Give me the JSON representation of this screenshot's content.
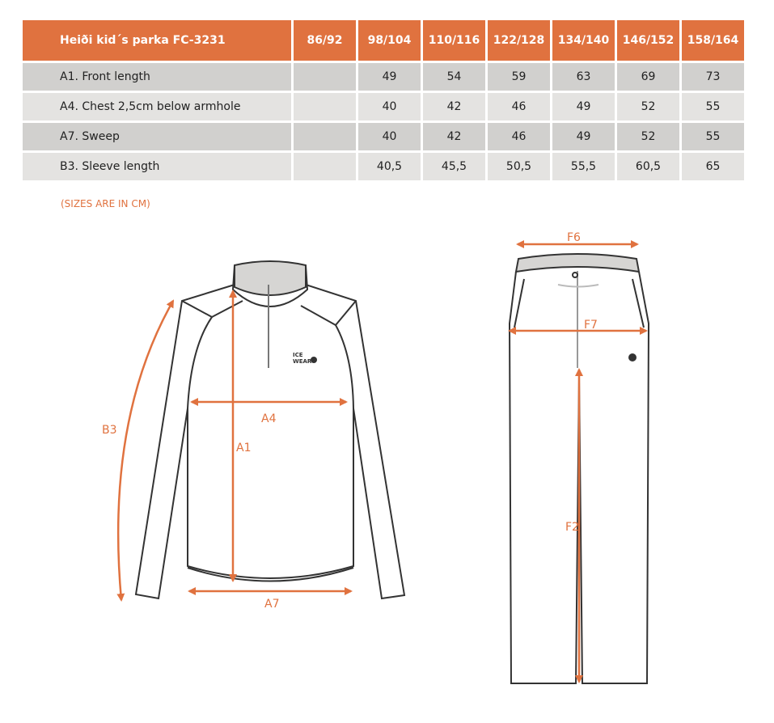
{
  "table": {
    "title": "Heiði kid´s parka FC-3231",
    "sizes": [
      "86/92",
      "98/104",
      "110/116",
      "122/128",
      "134/140",
      "146/152",
      "158/164"
    ],
    "rows": [
      {
        "label": "A1. Front length",
        "values": [
          "",
          "49",
          "54",
          "59",
          "63",
          "69",
          "73"
        ]
      },
      {
        "label": "A4. Chest 2,5cm below armhole",
        "values": [
          "",
          "40",
          "42",
          "46",
          "49",
          "52",
          "55"
        ]
      },
      {
        "label": "A7. Sweep",
        "values": [
          "",
          "40",
          "42",
          "46",
          "49",
          "52",
          "55"
        ]
      },
      {
        "label": "B3. Sleeve length",
        "values": [
          "",
          "40,5",
          "45,5",
          "50,5",
          "55,5",
          "60,5",
          "65"
        ]
      }
    ]
  },
  "note": "(SIZES ARE IN CM)",
  "diagram": {
    "jacket_labels": {
      "b3": "B3",
      "a4": "A4",
      "a1": "A1",
      "a7": "A7"
    },
    "pants_labels": {
      "f6": "F6",
      "f7": "F7",
      "f2": "F2"
    },
    "logo": "ICE WEAR",
    "accent": "#E0723F"
  }
}
